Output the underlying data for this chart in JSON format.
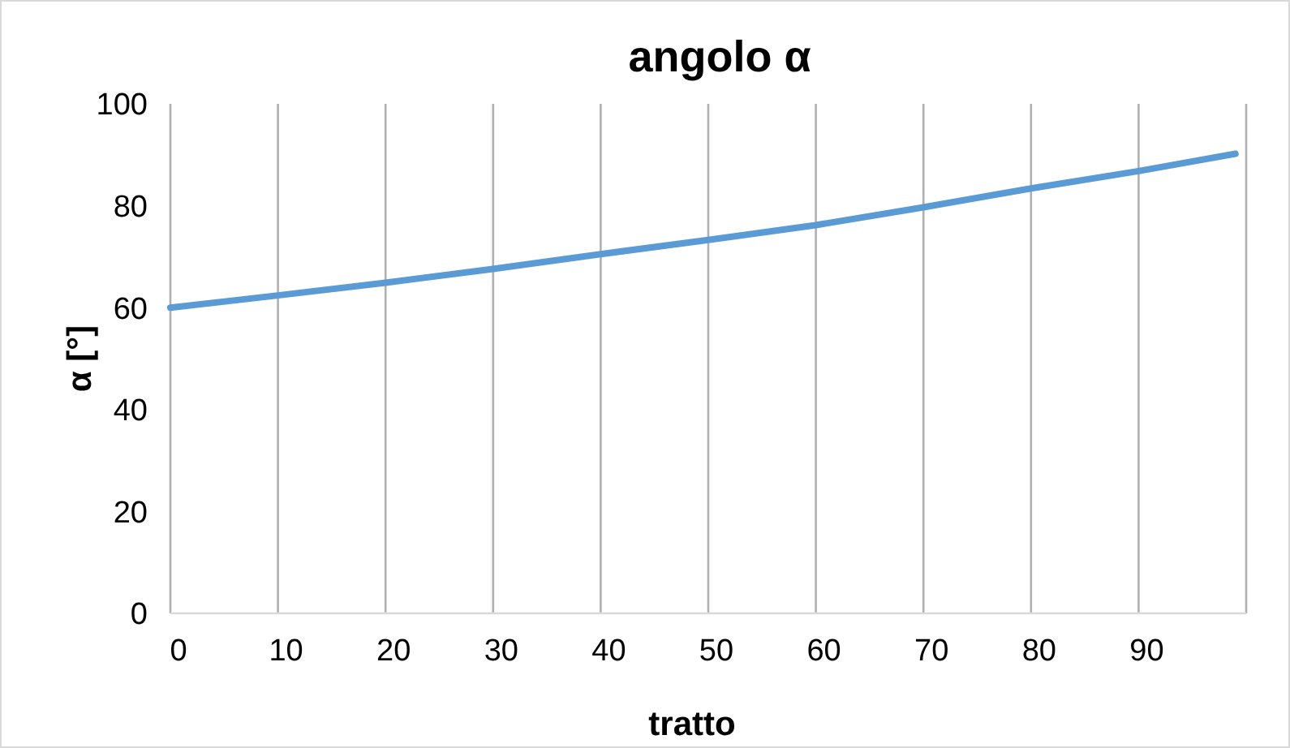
{
  "chart_data": {
    "type": "line",
    "title": "angolo α",
    "xlabel": "tratto",
    "ylabel": "α [°]",
    "x": [
      0,
      10,
      20,
      30,
      40,
      50,
      60,
      70,
      80,
      90,
      99
    ],
    "series": [
      {
        "color": "#5b9bd5",
        "values": [
          60,
          62.4,
          64.9,
          67.6,
          70.5,
          73.3,
          76.2,
          79.7,
          83.4,
          86.8,
          90.2
        ]
      }
    ],
    "xlim": [
      0,
      100
    ],
    "xticks": [
      0,
      10,
      20,
      30,
      40,
      50,
      60,
      70,
      80,
      90,
      {
        "value": 100,
        "label": null
      }
    ],
    "ylim": [
      0,
      100
    ],
    "yticks": [
      0,
      20,
      40,
      60,
      80,
      100
    ],
    "grid": "x",
    "marker": "none",
    "line_style": "solid"
  }
}
